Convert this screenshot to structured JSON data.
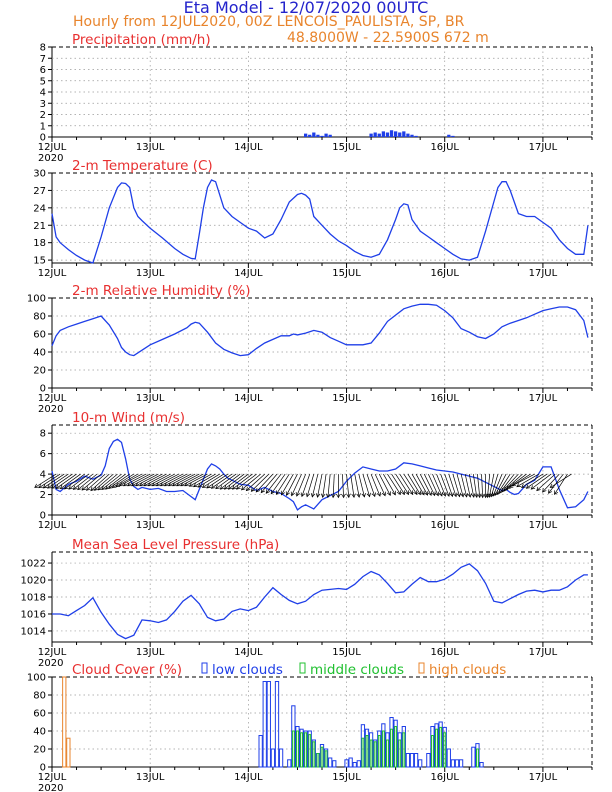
{
  "header": {
    "title": "Eta Model - 12/07/2020 00UTC",
    "subtitle": "Hourly from 12JUL2020, 00Z  LENCOIS_PAULISTA, SP, BR",
    "coords": "48.8000W - 22.5900S    672  m"
  },
  "colors": {
    "title": "#2424cc",
    "subtitle": "#e8842c",
    "panel_title": "#e83030",
    "series": "#1f3fe8",
    "low": "#1f3fe8",
    "middle": "#20c030",
    "high": "#e8842c",
    "grid": "#9a9a9a"
  },
  "time_axis": {
    "hours": 132,
    "day_labels": [
      "12JUL",
      "13JUL",
      "14JUL",
      "15JUL",
      "16JUL",
      "17JUL"
    ],
    "day_hours": [
      0,
      24,
      48,
      72,
      96,
      120
    ],
    "year_label": "2020"
  },
  "chart_data": [
    {
      "id": "precip",
      "type": "bar",
      "title": "Precipitation (mm/h)",
      "ylim": [
        0,
        8
      ],
      "yticks": [
        0,
        1,
        2,
        3,
        4,
        5,
        6,
        7,
        8
      ],
      "x": [
        62,
        63,
        64,
        65,
        66,
        67,
        68,
        78,
        79,
        80,
        81,
        82,
        83,
        84,
        85,
        86,
        87,
        88,
        89,
        97,
        98
      ],
      "values": [
        0.3,
        0.2,
        0.4,
        0.2,
        0.1,
        0.3,
        0.2,
        0.3,
        0.4,
        0.3,
        0.5,
        0.4,
        0.6,
        0.5,
        0.4,
        0.5,
        0.3,
        0.2,
        0.1,
        0.2,
        0.1
      ]
    },
    {
      "id": "temperature",
      "type": "line",
      "title": "2-m Temperature (C)",
      "ylim": [
        14.5,
        30
      ],
      "yticks": [
        15,
        18,
        21,
        24,
        27,
        30
      ],
      "x": [
        0,
        1,
        2,
        4,
        6,
        8,
        10,
        12,
        14,
        16,
        17,
        18,
        19,
        20,
        21,
        22,
        24,
        27,
        30,
        32,
        34,
        35,
        36,
        37,
        38,
        39,
        40,
        42,
        44,
        46,
        48,
        50,
        52,
        54,
        56,
        58,
        60,
        61,
        62,
        63,
        64,
        66,
        68,
        70,
        72,
        74,
        76,
        78,
        80,
        82,
        84,
        85,
        86,
        87,
        88,
        90,
        92,
        94,
        96,
        98,
        100,
        102,
        104,
        106,
        108,
        109,
        110,
        111,
        112,
        114,
        116,
        118,
        120,
        122,
        124,
        126,
        128,
        130,
        131
      ],
      "values": [
        23,
        19,
        18,
        16.8,
        15.8,
        15,
        14.5,
        19,
        24,
        27.5,
        28.3,
        28.2,
        27.5,
        24,
        22.5,
        21.8,
        20.5,
        18.8,
        17,
        16,
        15.3,
        15.2,
        19.5,
        24,
        27.5,
        28.8,
        28.5,
        24,
        22.5,
        21.5,
        20.5,
        20,
        18.8,
        19.5,
        22,
        25,
        26.3,
        26.5,
        26.2,
        25.5,
        22.5,
        21,
        19.5,
        18.3,
        17.5,
        16.5,
        15.8,
        15.5,
        16,
        18.5,
        22,
        24,
        24.7,
        24.5,
        22,
        20,
        19,
        18,
        17,
        16,
        15.2,
        15,
        15.5,
        20,
        25,
        27.5,
        28.5,
        28.5,
        27,
        23,
        22.5,
        22.5,
        21.5,
        20.5,
        18.5,
        17,
        16,
        16,
        21
      ]
    },
    {
      "id": "humidity",
      "type": "line",
      "title": "2-m Relative Humidity (%)",
      "ylim": [
        0,
        100
      ],
      "yticks": [
        0,
        20,
        40,
        60,
        80,
        100
      ],
      "x": [
        0,
        1,
        2,
        4,
        6,
        8,
        10,
        12,
        14,
        16,
        17,
        18,
        19,
        20,
        22,
        24,
        27,
        30,
        33,
        34,
        35,
        36,
        38,
        40,
        42,
        44,
        46,
        48,
        50,
        52,
        54,
        56,
        58,
        59,
        60,
        62,
        64,
        66,
        68,
        70,
        72,
        74,
        76,
        78,
        80,
        82,
        84,
        86,
        88,
        90,
        92,
        94,
        96,
        98,
        100,
        102,
        104,
        106,
        108,
        110,
        112,
        114,
        116,
        118,
        120,
        122,
        124,
        126,
        128,
        130,
        131
      ],
      "values": [
        47,
        58,
        64,
        68,
        71,
        74,
        77,
        80,
        70,
        55,
        45,
        40,
        37,
        36,
        42,
        48,
        54,
        60,
        67,
        71,
        73,
        72,
        62,
        50,
        43,
        39,
        36,
        37,
        44,
        50,
        54,
        58,
        58,
        60,
        59,
        61,
        64,
        62,
        56,
        52,
        48,
        48,
        48,
        50,
        61,
        74,
        81,
        88,
        91,
        93,
        93,
        92,
        86,
        78,
        66,
        62,
        57,
        55,
        60,
        68,
        72,
        75,
        78,
        82,
        86,
        88,
        90,
        90,
        87,
        75,
        56
      ]
    },
    {
      "id": "wind",
      "type": "line",
      "title": "10-m Wind (m/s)",
      "ylim": [
        0,
        8.8
      ],
      "yticks": [
        0,
        2,
        4,
        6,
        8
      ],
      "x": [
        0,
        1,
        2,
        4,
        6,
        8,
        10,
        12,
        13,
        14,
        15,
        16,
        17,
        18,
        19,
        20,
        21,
        22,
        24,
        26,
        28,
        30,
        32,
        34,
        35,
        36,
        37,
        38,
        39,
        40,
        41,
        42,
        43,
        44,
        46,
        48,
        50,
        52,
        54,
        56,
        58,
        59,
        60,
        61,
        62,
        64,
        66,
        68,
        70,
        72,
        74,
        76,
        78,
        80,
        82,
        84,
        86,
        88,
        90,
        92,
        94,
        96,
        98,
        100,
        102,
        104,
        106,
        108,
        110,
        111,
        112,
        113,
        114,
        116,
        118,
        120,
        122,
        124,
        126,
        128,
        130,
        131
      ],
      "values": [
        4.3,
        2.5,
        2.3,
        3,
        3.3,
        3.8,
        3.5,
        3.9,
        4.8,
        6.5,
        7.2,
        7.4,
        7.1,
        5.5,
        3.5,
        2.8,
        2.5,
        2.7,
        2.5,
        2.6,
        2.3,
        2.3,
        2.4,
        1.8,
        1.5,
        2.5,
        3.5,
        4.5,
        5,
        4.8,
        4.5,
        4,
        3.6,
        3.4,
        3,
        2.9,
        2.4,
        2.7,
        2.3,
        2.1,
        1.6,
        1.3,
        0.5,
        0.8,
        1,
        0.6,
        1.5,
        1.9,
        2.3,
        3.3,
        4.1,
        4.7,
        4.5,
        4.3,
        4.3,
        4.5,
        5.1,
        5,
        4.8,
        4.6,
        4.4,
        4.3,
        4.2,
        4,
        3.8,
        3.6,
        3.2,
        2.8,
        2.4,
        2.5,
        2.2,
        2,
        2.1,
        3,
        3.4,
        4.7,
        4.7,
        2.5,
        0.7,
        0.8,
        1.5,
        2.3
      ]
    },
    {
      "id": "pressure",
      "type": "line",
      "title": "Mean Sea Level Pressure (hPa)",
      "ylim": [
        1012.7,
        1023.3
      ],
      "yticks": [
        1014,
        1016,
        1018,
        1020,
        1022
      ],
      "x": [
        0,
        2,
        4,
        6,
        8,
        10,
        12,
        14,
        16,
        18,
        20,
        22,
        24,
        26,
        28,
        30,
        32,
        34,
        36,
        38,
        40,
        42,
        44,
        46,
        48,
        50,
        52,
        54,
        56,
        58,
        60,
        62,
        64,
        66,
        68,
        70,
        72,
        74,
        76,
        78,
        80,
        82,
        84,
        86,
        88,
        90,
        92,
        94,
        96,
        98,
        100,
        102,
        104,
        106,
        108,
        110,
        112,
        114,
        116,
        118,
        120,
        122,
        124,
        126,
        128,
        130,
        131
      ],
      "values": [
        1016,
        1016,
        1015.8,
        1016.4,
        1017,
        1017.9,
        1016.2,
        1014.8,
        1013.6,
        1013.1,
        1013.5,
        1015.3,
        1015.2,
        1015,
        1015.3,
        1016.3,
        1017.5,
        1018.2,
        1017.2,
        1015.6,
        1015.2,
        1015.4,
        1016.3,
        1016.6,
        1016.4,
        1016.8,
        1018,
        1019.1,
        1018.3,
        1017.6,
        1017.2,
        1017.5,
        1018.3,
        1018.8,
        1018.9,
        1019,
        1018.9,
        1019.5,
        1020.4,
        1021,
        1020.6,
        1019.6,
        1018.5,
        1018.6,
        1019.5,
        1020.3,
        1019.8,
        1019.8,
        1020.1,
        1020.7,
        1021.5,
        1021.9,
        1021.1,
        1019.6,
        1017.5,
        1017.3,
        1017.8,
        1018.3,
        1018.7,
        1018.8,
        1018.6,
        1018.8,
        1018.8,
        1019.2,
        1020,
        1020.6,
        1020.6
      ]
    },
    {
      "id": "cloud",
      "type": "bar",
      "title": "Cloud Cover (%)",
      "legend": [
        "low clouds",
        "middle clouds",
        "high clouds"
      ],
      "ylim": [
        0,
        100
      ],
      "yticks": [
        0,
        20,
        40,
        60,
        80,
        100
      ],
      "series": [
        {
          "name": "low clouds",
          "x": [
            51,
            52,
            53,
            54,
            55,
            56,
            58,
            59,
            60,
            61,
            62,
            63,
            64,
            65,
            66,
            67,
            68,
            69,
            72,
            73,
            74,
            75,
            76,
            77,
            78,
            79,
            80,
            81,
            82,
            83,
            84,
            85,
            86,
            87,
            88,
            89,
            90,
            92,
            93,
            94,
            95,
            96,
            97,
            98,
            99,
            100,
            103,
            104,
            105
          ],
          "values": [
            35,
            95,
            95,
            20,
            95,
            20,
            8,
            68,
            45,
            42,
            40,
            40,
            30,
            15,
            25,
            20,
            10,
            7,
            8,
            10,
            5,
            7,
            47,
            42,
            38,
            30,
            40,
            48,
            38,
            55,
            52,
            38,
            45,
            15,
            15,
            15,
            8,
            15,
            45,
            48,
            50,
            44,
            20,
            8,
            8,
            8,
            22,
            26,
            5
          ]
        },
        {
          "name": "middle clouds",
          "x": [
            59,
            60,
            61,
            62,
            63,
            64,
            65,
            66,
            67,
            76,
            77,
            78,
            79,
            80,
            81,
            82,
            83,
            84,
            85,
            86,
            93,
            94,
            95,
            96,
            104
          ],
          "values": [
            40,
            40,
            38,
            38,
            36,
            28,
            15,
            22,
            18,
            32,
            35,
            30,
            28,
            35,
            40,
            30,
            42,
            45,
            30,
            38,
            35,
            42,
            44,
            38,
            20
          ]
        },
        {
          "name": "high clouds",
          "x": [
            3,
            4
          ],
          "values": [
            100,
            32
          ]
        }
      ]
    }
  ]
}
